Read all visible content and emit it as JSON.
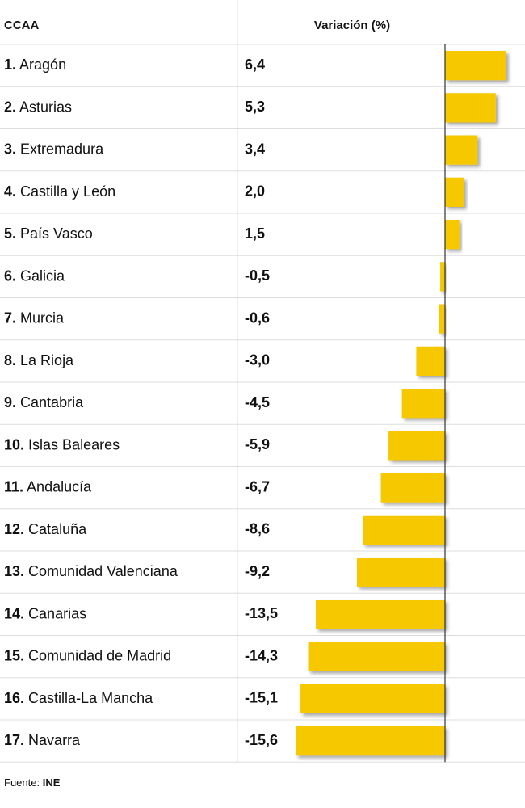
{
  "chart_data": {
    "type": "bar",
    "column_headers": [
      "CCAA",
      "Variación (%)"
    ],
    "ranks": [
      "1.",
      "2.",
      "3.",
      "4.",
      "5.",
      "6.",
      "7.",
      "8.",
      "9.",
      "10.",
      "11.",
      "12.",
      "13.",
      "14.",
      "15.",
      "16.",
      "17."
    ],
    "categories": [
      "Aragón",
      "Asturias",
      "Extremadura",
      "Castilla y León",
      "País Vasco",
      "Galicia",
      "Murcia",
      "La Rioja",
      "Cantabria",
      "Islas Baleares",
      "Andalucía",
      "Cataluña",
      "Comunidad Valenciana",
      "Canarias",
      "Comunidad de Madrid",
      "Castilla-La Mancha",
      "Navarra"
    ],
    "values": [
      6.4,
      5.3,
      3.4,
      2.0,
      1.5,
      -0.5,
      -0.6,
      -3.0,
      -4.5,
      -5.9,
      -6.7,
      -8.6,
      -9.2,
      -13.5,
      -14.3,
      -15.1,
      -15.6
    ],
    "value_labels": [
      "6,4",
      "5,3",
      "3,4",
      "2,0",
      "1,5",
      "-0,5",
      "-0,6",
      "-3,0",
      "-4,5",
      "-5,9",
      "-6,7",
      "-8,6",
      "-9,2",
      "-13,5",
      "-14,3",
      "-15,1",
      "-15,6"
    ],
    "color": "#f5c800",
    "source_label": "Fuente:",
    "source": "INE"
  }
}
